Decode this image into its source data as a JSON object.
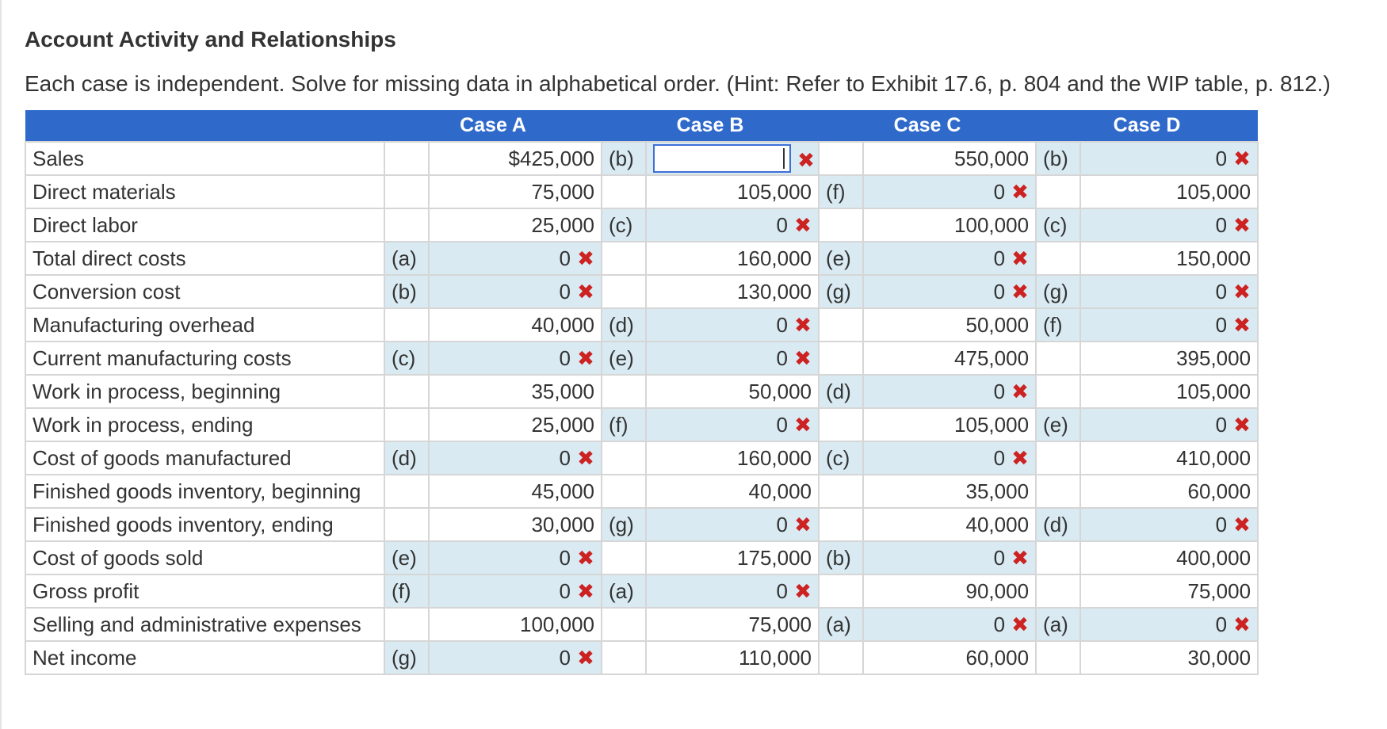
{
  "title": "Account Activity and Relationships",
  "instructions": "Each case is independent. Solve for missing data in alphabetical order. (Hint: Refer to Exhibit 17.6, p. 804 and the WIP table, p. 812.)",
  "cases": [
    "Case A",
    "Case B",
    "Case C",
    "Case D"
  ],
  "input_value": "",
  "rows": [
    {
      "label": "Sales",
      "a_key": "",
      "a_val": "$425,000",
      "a_x": false,
      "b_key": "(b)",
      "b_val": "",
      "b_x": true,
      "c_key": "",
      "c_val": "550,000",
      "c_x": false,
      "d_key": "(b)",
      "d_val": "0",
      "d_x": true
    },
    {
      "label": "Direct materials",
      "a_key": "",
      "a_val": "75,000",
      "a_x": false,
      "b_key": "",
      "b_val": "105,000",
      "b_x": false,
      "c_key": "(f)",
      "c_val": "0",
      "c_x": true,
      "d_key": "",
      "d_val": "105,000",
      "d_x": false
    },
    {
      "label": "Direct labor",
      "a_key": "",
      "a_val": "25,000",
      "a_x": false,
      "b_key": "(c)",
      "b_val": "0",
      "b_x": true,
      "c_key": "",
      "c_val": "100,000",
      "c_x": false,
      "d_key": "(c)",
      "d_val": "0",
      "d_x": true
    },
    {
      "label": "Total direct costs",
      "a_key": "(a)",
      "a_val": "0",
      "a_x": true,
      "b_key": "",
      "b_val": "160,000",
      "b_x": false,
      "c_key": "(e)",
      "c_val": "0",
      "c_x": true,
      "d_key": "",
      "d_val": "150,000",
      "d_x": false
    },
    {
      "label": "Conversion cost",
      "a_key": "(b)",
      "a_val": "0",
      "a_x": true,
      "b_key": "",
      "b_val": "130,000",
      "b_x": false,
      "c_key": "(g)",
      "c_val": "0",
      "c_x": true,
      "d_key": "(g)",
      "d_val": "0",
      "d_x": true
    },
    {
      "label": "Manufacturing overhead",
      "a_key": "",
      "a_val": "40,000",
      "a_x": false,
      "b_key": "(d)",
      "b_val": "0",
      "b_x": true,
      "c_key": "",
      "c_val": "50,000",
      "c_x": false,
      "d_key": "(f)",
      "d_val": "0",
      "d_x": true
    },
    {
      "label": "Current manufacturing costs",
      "a_key": "(c)",
      "a_val": "0",
      "a_x": true,
      "b_key": "(e)",
      "b_val": "0",
      "b_x": true,
      "c_key": "",
      "c_val": "475,000",
      "c_x": false,
      "d_key": "",
      "d_val": "395,000",
      "d_x": false
    },
    {
      "label": "Work in process, beginning",
      "a_key": "",
      "a_val": "35,000",
      "a_x": false,
      "b_key": "",
      "b_val": "50,000",
      "b_x": false,
      "c_key": "(d)",
      "c_val": "0",
      "c_x": true,
      "d_key": "",
      "d_val": "105,000",
      "d_x": false
    },
    {
      "label": "Work in process, ending",
      "a_key": "",
      "a_val": "25,000",
      "a_x": false,
      "b_key": "(f)",
      "b_val": "0",
      "b_x": true,
      "c_key": "",
      "c_val": "105,000",
      "c_x": false,
      "d_key": "(e)",
      "d_val": "0",
      "d_x": true
    },
    {
      "label": "Cost of goods manufactured",
      "a_key": "(d)",
      "a_val": "0",
      "a_x": true,
      "b_key": "",
      "b_val": "160,000",
      "b_x": false,
      "c_key": "(c)",
      "c_val": "0",
      "c_x": true,
      "d_key": "",
      "d_val": "410,000",
      "d_x": false
    },
    {
      "label": "Finished goods inventory, beginning",
      "a_key": "",
      "a_val": "45,000",
      "a_x": false,
      "b_key": "",
      "b_val": "40,000",
      "b_x": false,
      "c_key": "",
      "c_val": "35,000",
      "c_x": false,
      "d_key": "",
      "d_val": "60,000",
      "d_x": false
    },
    {
      "label": "Finished goods inventory, ending",
      "a_key": "",
      "a_val": "30,000",
      "a_x": false,
      "b_key": "(g)",
      "b_val": "0",
      "b_x": true,
      "c_key": "",
      "c_val": "40,000",
      "c_x": false,
      "d_key": "(d)",
      "d_val": "0",
      "d_x": true
    },
    {
      "label": "Cost of goods sold",
      "a_key": "(e)",
      "a_val": "0",
      "a_x": true,
      "b_key": "",
      "b_val": "175,000",
      "b_x": false,
      "c_key": "(b)",
      "c_val": "0",
      "c_x": true,
      "d_key": "",
      "d_val": "400,000",
      "d_x": false
    },
    {
      "label": "Gross profit",
      "a_key": "(f)",
      "a_val": "0",
      "a_x": true,
      "b_key": "(a)",
      "b_val": "0",
      "b_x": true,
      "c_key": "",
      "c_val": "90,000",
      "c_x": false,
      "d_key": "",
      "d_val": "75,000",
      "d_x": false
    },
    {
      "label": "Selling and administrative expenses",
      "a_key": "",
      "a_val": "100,000",
      "a_x": false,
      "b_key": "",
      "b_val": "75,000",
      "b_x": false,
      "c_key": "(a)",
      "c_val": "0",
      "c_x": true,
      "d_key": "(a)",
      "d_val": "0",
      "d_x": true
    },
    {
      "label": "Net income",
      "a_key": "(g)",
      "a_val": "0",
      "a_x": true,
      "b_key": "",
      "b_val": "110,000",
      "b_x": false,
      "c_key": "",
      "c_val": "60,000",
      "c_x": false,
      "d_key": "",
      "d_val": "30,000",
      "d_x": false
    }
  ],
  "incorrect_mark_icon": "x-mark-icon",
  "colors": {
    "header": "#2f6acb",
    "shaded": "#d9eaf2",
    "incorrect": "#cc2222",
    "focus": "#3d6fd6"
  }
}
